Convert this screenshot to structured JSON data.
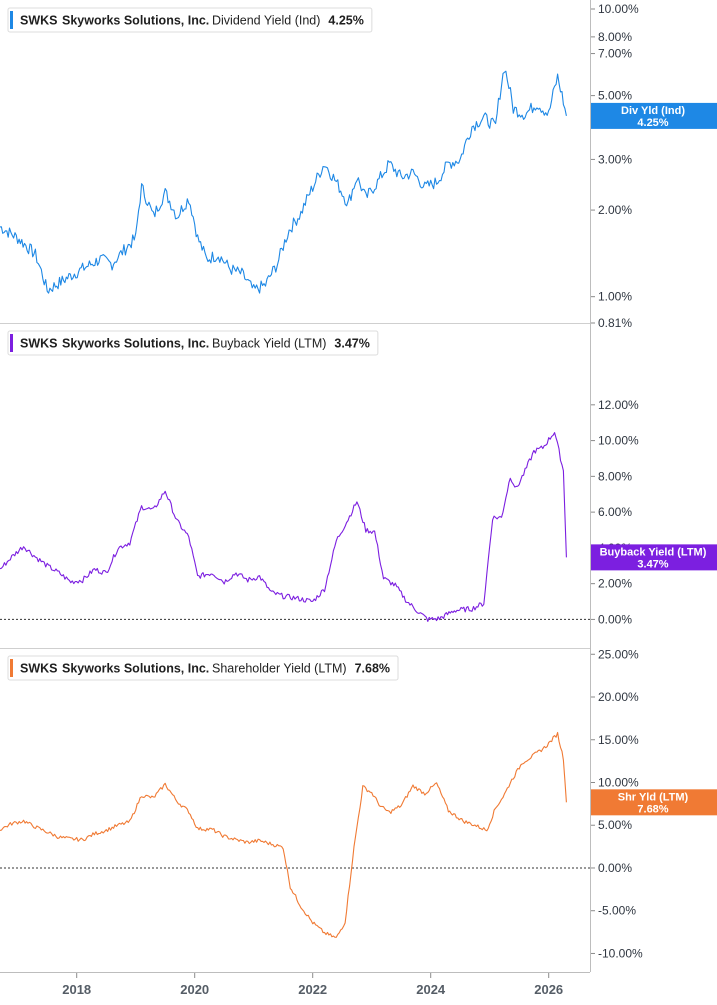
{
  "colors": {
    "dividend": "#1e88e5",
    "buyback": "#7c1fe0",
    "shareholder": "#f07a34",
    "grid": "#c8c8c8",
    "text": "#2f3640"
  },
  "x_axis": {
    "ticks": [
      "2018",
      "2020",
      "2022",
      "2024",
      "2026"
    ],
    "range": [
      2016.7,
      2026.7
    ]
  },
  "chart_data": [
    {
      "type": "line",
      "legend": {
        "ticker": "SWKS",
        "company": "Skyworks Solutions, Inc.",
        "metric": "Dividend Yield (Ind)",
        "value": "4.25%"
      },
      "badge": {
        "label": "Div Yld (Ind)",
        "value": "4.25%"
      },
      "yscale": "log",
      "ylim": [
        0.81,
        10.0
      ],
      "yticks": [
        "10.00%",
        "8.00%",
        "7.00%",
        "5.00%",
        "3.00%",
        "2.00%",
        "1.00%",
        "0.81%"
      ],
      "ytick_values": [
        10,
        8,
        7,
        5,
        3,
        2,
        1,
        0.81
      ],
      "x": [
        2016.7,
        2017.0,
        2017.3,
        2017.5,
        2017.8,
        2018.1,
        2018.4,
        2018.6,
        2018.8,
        2019.0,
        2019.1,
        2019.3,
        2019.5,
        2019.7,
        2019.9,
        2020.05,
        2020.2,
        2020.4,
        2020.6,
        2020.8,
        2021.0,
        2021.2,
        2021.4,
        2021.6,
        2021.8,
        2022.0,
        2022.2,
        2022.4,
        2022.6,
        2022.75,
        2022.9,
        2023.1,
        2023.3,
        2023.5,
        2023.7,
        2023.9,
        2024.1,
        2024.3,
        2024.5,
        2024.7,
        2024.9,
        2025.1,
        2025.25,
        2025.4,
        2025.6,
        2025.8,
        2026.0,
        2026.15,
        2026.3
      ],
      "series": [
        {
          "values": [
            1.75,
            1.6,
            1.4,
            1.05,
            1.15,
            1.25,
            1.35,
            1.3,
            1.45,
            1.6,
            2.4,
            1.9,
            2.3,
            1.9,
            2.2,
            1.6,
            1.35,
            1.4,
            1.25,
            1.2,
            1.05,
            1.1,
            1.3,
            1.7,
            1.95,
            2.4,
            2.9,
            2.5,
            2.1,
            2.6,
            2.2,
            2.5,
            2.9,
            2.6,
            2.7,
            2.4,
            2.5,
            2.9,
            3.0,
            3.9,
            4.2,
            3.9,
            6.3,
            4.5,
            4.3,
            4.7,
            4.3,
            5.8,
            4.25
          ]
        }
      ]
    },
    {
      "type": "line",
      "legend": {
        "ticker": "SWKS",
        "company": "Skyworks Solutions, Inc.",
        "metric": "Buyback Yield (LTM)",
        "value": "3.47%"
      },
      "badge": {
        "label": "Buyback Yield (LTM)",
        "value": "3.47%"
      },
      "ylim": [
        -0.2,
        13.5
      ],
      "yticks": [
        "12.00%",
        "10.00%",
        "8.00%",
        "6.00%",
        "4.00%",
        "2.00%",
        "0.00%"
      ],
      "ytick_values": [
        12,
        10,
        8,
        6,
        4,
        2,
        0
      ],
      "x": [
        2016.7,
        2016.9,
        2017.1,
        2017.3,
        2017.5,
        2017.7,
        2017.9,
        2018.1,
        2018.3,
        2018.5,
        2018.7,
        2018.9,
        2019.1,
        2019.3,
        2019.5,
        2019.7,
        2019.9,
        2020.05,
        2020.3,
        2020.5,
        2020.7,
        2020.9,
        2021.1,
        2021.3,
        2021.5,
        2021.7,
        2021.85,
        2022.0,
        2022.2,
        2022.4,
        2022.6,
        2022.75,
        2022.9,
        2023.05,
        2023.2,
        2023.4,
        2023.6,
        2023.8,
        2023.95,
        2024.15,
        2024.4,
        2024.7,
        2024.9,
        2025.05,
        2025.2,
        2025.35,
        2025.45,
        2025.6,
        2025.75,
        2025.9,
        2026.1,
        2026.25,
        2026.3
      ],
      "series": [
        {
          "values": [
            2.8,
            3.5,
            4.1,
            3.5,
            3.0,
            2.6,
            2.1,
            2.2,
            2.8,
            2.6,
            4.0,
            4.3,
            6.3,
            6.1,
            7.2,
            5.5,
            4.6,
            2.4,
            2.6,
            2.1,
            2.6,
            2.2,
            2.4,
            1.5,
            1.3,
            1.2,
            1.1,
            1.0,
            1.7,
            4.4,
            5.6,
            6.6,
            5.0,
            4.9,
            2.3,
            1.9,
            1.0,
            0.4,
            0.0,
            0.05,
            0.5,
            0.6,
            0.9,
            5.7,
            5.7,
            8.0,
            7.3,
            8.3,
            9.4,
            9.6,
            10.5,
            8.3,
            3.47
          ]
        }
      ]
    },
    {
      "type": "line",
      "legend": {
        "ticker": "SWKS",
        "company": "Skyworks Solutions, Inc.",
        "metric": "Shareholder Yield (LTM)",
        "value": "7.68%"
      },
      "badge": {
        "label": "Shr Yld (LTM)",
        "value": "7.68%"
      },
      "ylim": [
        -11.0,
        25.5
      ],
      "yticks": [
        "25.00%",
        "20.00%",
        "15.00%",
        "10.00%",
        "5.00%",
        "0.00%",
        "-5.00%",
        "-10.00%"
      ],
      "ytick_values": [
        25,
        20,
        15,
        10,
        5,
        0,
        -5,
        -10
      ],
      "x": [
        2016.7,
        2016.9,
        2017.1,
        2017.3,
        2017.5,
        2017.7,
        2017.9,
        2018.1,
        2018.3,
        2018.5,
        2018.7,
        2018.9,
        2019.1,
        2019.3,
        2019.5,
        2019.7,
        2019.9,
        2020.05,
        2020.3,
        2020.5,
        2020.7,
        2020.9,
        2021.1,
        2021.3,
        2021.5,
        2021.62,
        2021.8,
        2022.0,
        2022.2,
        2022.4,
        2022.55,
        2022.7,
        2022.85,
        2023.0,
        2023.15,
        2023.3,
        2023.5,
        2023.7,
        2023.9,
        2024.1,
        2024.3,
        2024.55,
        2024.75,
        2024.95,
        2025.1,
        2025.25,
        2025.35,
        2025.55,
        2025.75,
        2025.95,
        2026.15,
        2026.25,
        2026.3
      ],
      "series": [
        {
          "values": [
            4.5,
            5.2,
            5.5,
            4.8,
            4.2,
            3.6,
            3.4,
            3.3,
            4.0,
            4.4,
            5.0,
            5.4,
            8.5,
            8.2,
            9.8,
            7.8,
            6.6,
            4.6,
            4.5,
            3.7,
            3.3,
            3.0,
            3.2,
            2.8,
            2.4,
            -2.2,
            -4.5,
            -6.4,
            -7.6,
            -8.2,
            -6.3,
            2.4,
            9.5,
            8.8,
            7.2,
            6.5,
            7.3,
            9.6,
            8.7,
            9.9,
            6.7,
            5.5,
            5.0,
            4.4,
            7.0,
            8.6,
            10.0,
            12.3,
            13.2,
            14.2,
            15.7,
            12.8,
            7.68
          ]
        }
      ]
    }
  ]
}
